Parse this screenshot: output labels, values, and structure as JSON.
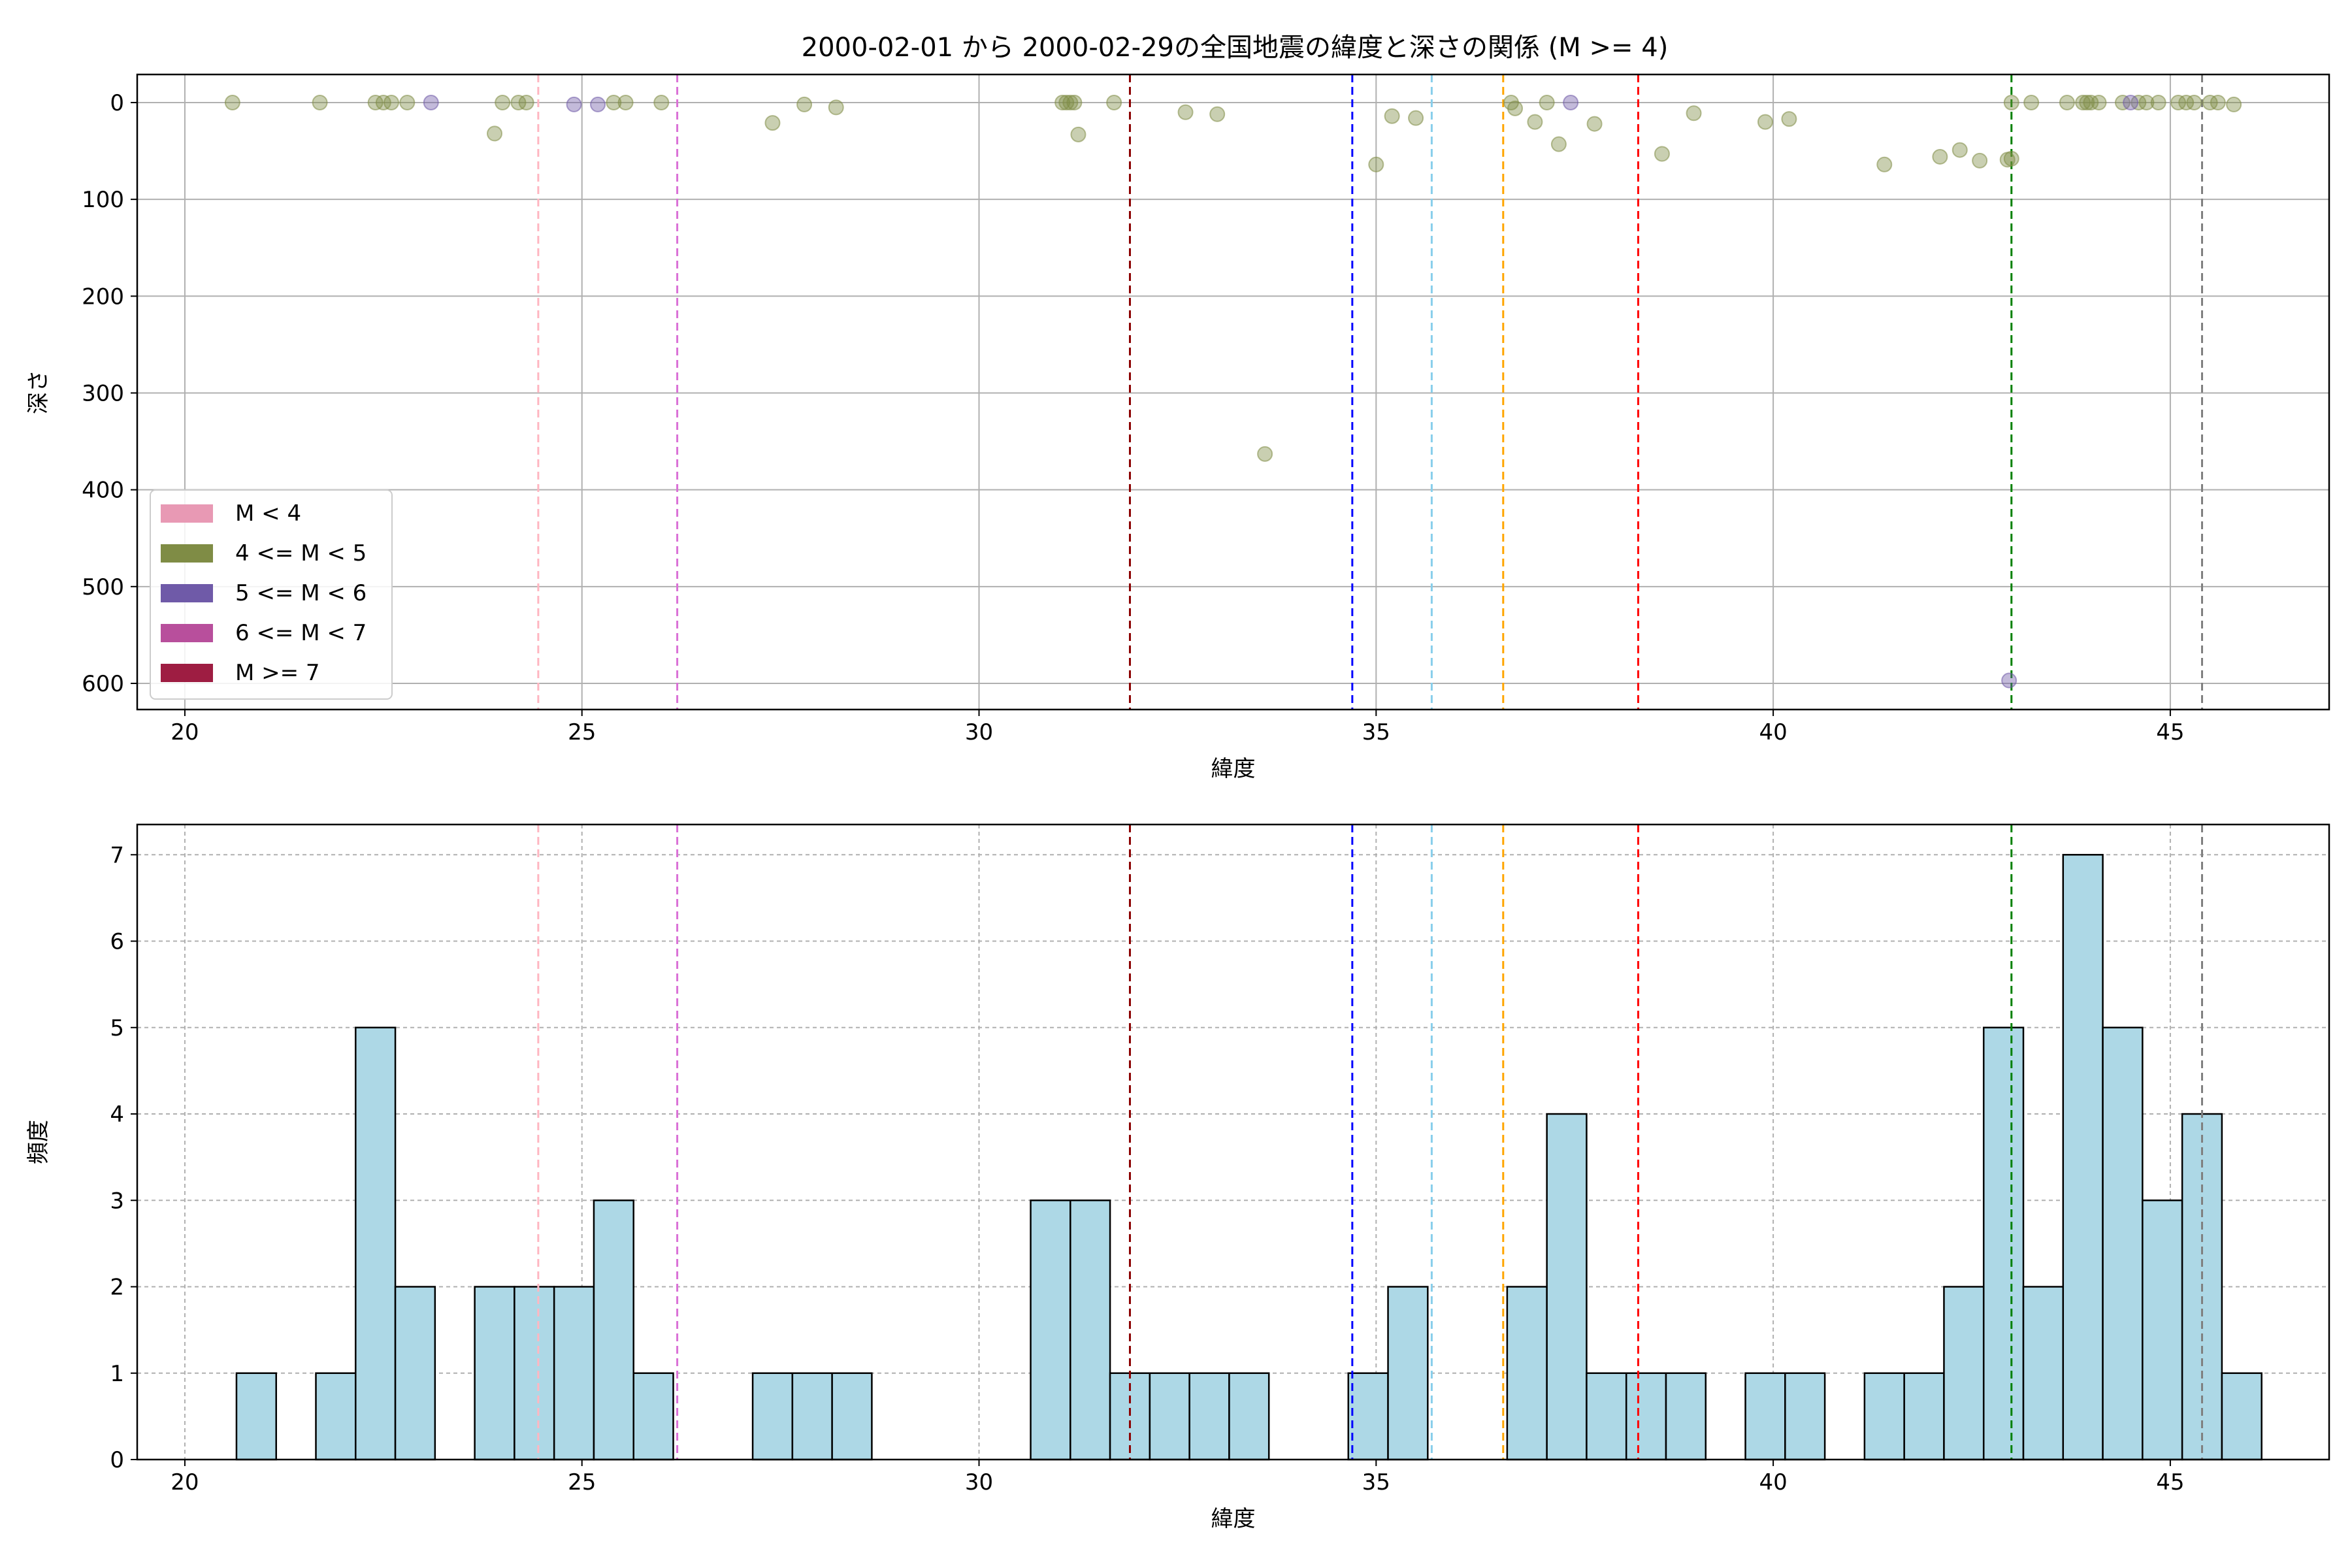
{
  "figure_title": "2000-02-01 から 2000-02-29の全国地震の緯度と深さの関係 (M >= 4)",
  "chart_data": [
    {
      "type": "scatter",
      "xlabel": "緯度",
      "ylabel": "深さ",
      "xlim": [
        19.4,
        47.0
      ],
      "ylim": [
        627,
        -29
      ],
      "y_inverted": true,
      "grid": true,
      "xticks": [
        20,
        25,
        30,
        35,
        40,
        45
      ],
      "yticks": [
        0,
        100,
        200,
        300,
        400,
        500,
        600
      ],
      "legend_position": "lower-left",
      "legend": [
        {
          "label": "M < 4",
          "color": "#e899b4"
        },
        {
          "label": "4 <= M < 5",
          "color": "#7f8c45"
        },
        {
          "label": "5 <= M < 6",
          "color": "#6f5aa8"
        },
        {
          "label": "6 <= M < 7",
          "color": "#b84f9c"
        },
        {
          "label": "M >= 7",
          "color": "#9e1d42"
        }
      ],
      "reference_lines": [
        {
          "x": 24.45,
          "color": "#ffb6c1"
        },
        {
          "x": 26.2,
          "color": "#da70d6"
        },
        {
          "x": 31.9,
          "color": "#8b0000"
        },
        {
          "x": 34.7,
          "color": "#0000ff"
        },
        {
          "x": 35.7,
          "color": "#87ceeb"
        },
        {
          "x": 36.6,
          "color": "#ffa500"
        },
        {
          "x": 38.3,
          "color": "#ff0000"
        },
        {
          "x": 43.0,
          "color": "#008000"
        },
        {
          "x": 45.4,
          "color": "#808080"
        }
      ],
      "series": [
        {
          "color": "#7f8c45",
          "points": [
            [
              20.6,
              0
            ],
            [
              21.7,
              0
            ],
            [
              22.4,
              0
            ],
            [
              22.5,
              0
            ],
            [
              22.6,
              0
            ],
            [
              22.8,
              0
            ],
            [
              23.9,
              32
            ],
            [
              24.0,
              0
            ],
            [
              24.2,
              0
            ],
            [
              24.3,
              0
            ],
            [
              25.4,
              0
            ],
            [
              25.55,
              0
            ],
            [
              26.0,
              0
            ],
            [
              27.4,
              21
            ],
            [
              27.8,
              2
            ],
            [
              28.2,
              5
            ],
            [
              31.05,
              0
            ],
            [
              31.1,
              0
            ],
            [
              31.15,
              0
            ],
            [
              31.2,
              0
            ],
            [
              31.25,
              33
            ],
            [
              31.7,
              0
            ],
            [
              32.6,
              10
            ],
            [
              33.0,
              12
            ],
            [
              33.6,
              363
            ],
            [
              35.0,
              64
            ],
            [
              35.2,
              14
            ],
            [
              35.5,
              16
            ],
            [
              36.7,
              0
            ],
            [
              36.75,
              6
            ],
            [
              37.0,
              20
            ],
            [
              37.15,
              0
            ],
            [
              37.3,
              43
            ],
            [
              37.75,
              22
            ],
            [
              38.6,
              53
            ],
            [
              39.0,
              11
            ],
            [
              39.9,
              20
            ],
            [
              40.2,
              17
            ],
            [
              41.4,
              64
            ],
            [
              42.1,
              56
            ],
            [
              42.35,
              49
            ],
            [
              42.6,
              60
            ],
            [
              42.95,
              59
            ],
            [
              43.0,
              58
            ],
            [
              43.0,
              0
            ],
            [
              43.25,
              0
            ],
            [
              43.7,
              0
            ],
            [
              43.9,
              0
            ],
            [
              43.95,
              0
            ],
            [
              44.0,
              0
            ],
            [
              44.1,
              0
            ],
            [
              44.4,
              0
            ],
            [
              44.6,
              0
            ],
            [
              44.7,
              0
            ],
            [
              44.85,
              0
            ],
            [
              45.1,
              0
            ],
            [
              45.2,
              0
            ],
            [
              45.3,
              0
            ],
            [
              45.5,
              0
            ],
            [
              45.6,
              0
            ],
            [
              45.8,
              2
            ]
          ]
        },
        {
          "color": "#6f5aa8",
          "points": [
            [
              23.1,
              0
            ],
            [
              24.9,
              2
            ],
            [
              25.2,
              2
            ],
            [
              37.45,
              0
            ],
            [
              44.5,
              0
            ],
            [
              42.97,
              597
            ]
          ]
        }
      ]
    },
    {
      "type": "bar",
      "xlabel": "緯度",
      "ylabel": "頻度",
      "xlim": [
        19.4,
        47.0
      ],
      "ylim": [
        0,
        7.35
      ],
      "grid": true,
      "xticks": [
        20,
        25,
        30,
        35,
        40,
        45
      ],
      "yticks": [
        0,
        1,
        2,
        3,
        4,
        5,
        6,
        7
      ],
      "bar_color": "#add8e6",
      "bin_width": 0.5,
      "bins": [
        [
          20.65,
          1
        ],
        [
          21.65,
          1
        ],
        [
          22.15,
          5
        ],
        [
          22.65,
          2
        ],
        [
          23.65,
          2
        ],
        [
          24.15,
          2
        ],
        [
          24.65,
          2
        ],
        [
          25.15,
          3
        ],
        [
          25.65,
          1
        ],
        [
          27.15,
          1
        ],
        [
          27.65,
          1
        ],
        [
          28.15,
          1
        ],
        [
          30.65,
          3
        ],
        [
          31.15,
          3
        ],
        [
          31.65,
          1
        ],
        [
          32.15,
          1
        ],
        [
          32.65,
          1
        ],
        [
          33.15,
          1
        ],
        [
          34.65,
          1
        ],
        [
          35.15,
          2
        ],
        [
          36.65,
          2
        ],
        [
          37.15,
          4
        ],
        [
          37.65,
          1
        ],
        [
          38.15,
          1
        ],
        [
          38.65,
          1
        ],
        [
          39.65,
          1
        ],
        [
          40.15,
          1
        ],
        [
          41.15,
          1
        ],
        [
          41.65,
          1
        ],
        [
          42.15,
          2
        ],
        [
          42.65,
          5
        ],
        [
          43.15,
          2
        ],
        [
          43.65,
          7
        ],
        [
          44.15,
          5
        ],
        [
          44.65,
          3
        ],
        [
          45.15,
          4
        ],
        [
          45.65,
          1
        ]
      ],
      "reference_lines": [
        {
          "x": 24.45,
          "color": "#ffb6c1"
        },
        {
          "x": 26.2,
          "color": "#da70d6"
        },
        {
          "x": 31.9,
          "color": "#8b0000"
        },
        {
          "x": 34.7,
          "color": "#0000ff"
        },
        {
          "x": 35.7,
          "color": "#87ceeb"
        },
        {
          "x": 36.6,
          "color": "#ffa500"
        },
        {
          "x": 38.3,
          "color": "#ff0000"
        },
        {
          "x": 43.0,
          "color": "#008000"
        },
        {
          "x": 45.4,
          "color": "#808080"
        }
      ]
    }
  ]
}
